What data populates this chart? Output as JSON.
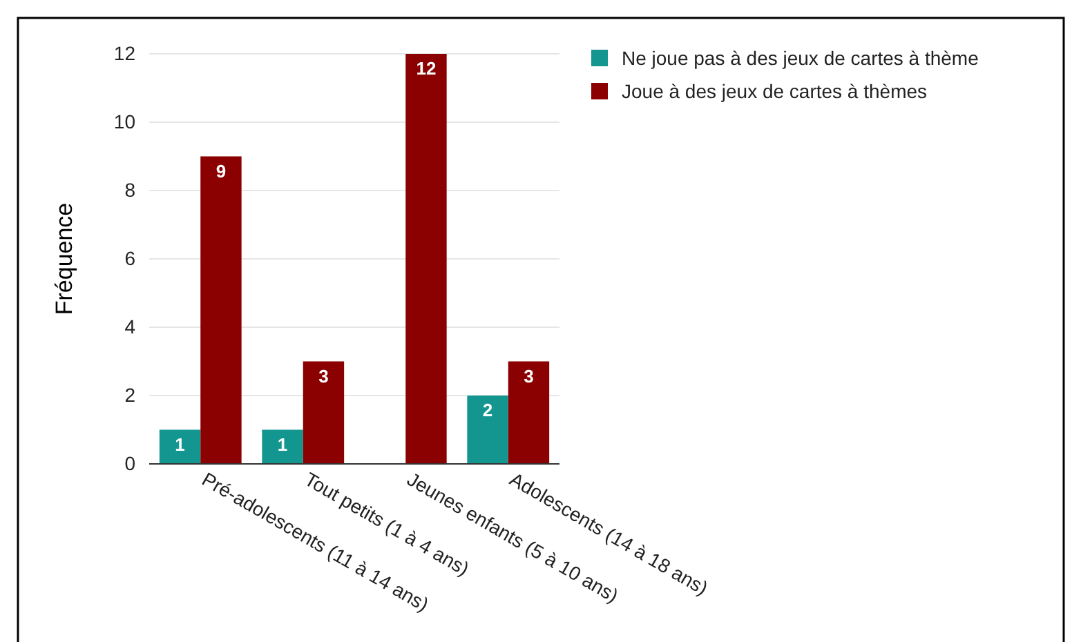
{
  "chart_data": {
    "type": "bar",
    "ylabel": "Fréquence",
    "categories": [
      "Pré-adolescents (11 à 14 ans)",
      "Tout petits (1 à 4 ans)",
      "Jeunes enfants (5 à 10 ans)",
      "Adolescents (14 à 18 ans)"
    ],
    "series": [
      {
        "name": "Ne joue pas à des jeux de cartes à thème",
        "color": "#139590",
        "values": [
          1,
          1,
          null,
          2
        ]
      },
      {
        "name": "Joue à des jeux de cartes à thèmes",
        "color": "#8b0000",
        "values": [
          9,
          3,
          12,
          3
        ]
      }
    ],
    "ylim": [
      0,
      12
    ],
    "yticks": [
      0,
      2,
      4,
      6,
      8,
      10,
      12
    ],
    "grid": "y",
    "legend": "top right",
    "data_labels": true
  }
}
